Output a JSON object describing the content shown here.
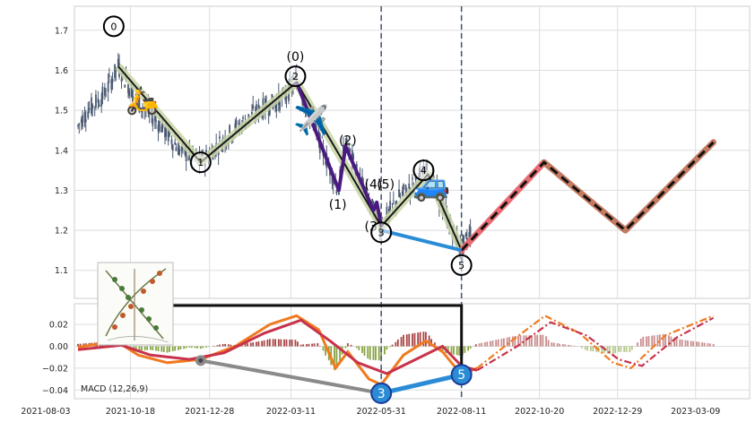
{
  "chart_data": [
    {
      "type": "candlestick",
      "ylim": [
        1.03,
        1.76
      ],
      "yticks": [
        "1.1",
        "1.2",
        "1.3",
        "1.4",
        "1.5",
        "1.6",
        "1.7"
      ],
      "x_range": [
        "2021-08-03",
        "2023-04-08"
      ],
      "grid": true,
      "price_path": [
        {
          "d": "2021-09-01",
          "v": 1.46
        },
        {
          "d": "2021-09-10",
          "v": 1.5
        },
        {
          "d": "2021-09-25",
          "v": 1.54
        },
        {
          "d": "2021-10-07",
          "v": 1.61
        },
        {
          "d": "2021-10-25",
          "v": 1.52
        },
        {
          "d": "2021-11-12",
          "v": 1.47
        },
        {
          "d": "2021-12-02",
          "v": 1.4
        },
        {
          "d": "2021-12-20",
          "v": 1.37
        },
        {
          "d": "2022-01-15",
          "v": 1.44
        },
        {
          "d": "2022-02-10",
          "v": 1.5
        },
        {
          "d": "2022-03-05",
          "v": 1.53
        },
        {
          "d": "2022-03-16",
          "v": 1.58
        },
        {
          "d": "2022-04-02",
          "v": 1.45
        },
        {
          "d": "2022-04-23",
          "v": 1.3
        },
        {
          "d": "2022-04-29",
          "v": 1.42
        },
        {
          "d": "2022-05-12",
          "v": 1.33
        },
        {
          "d": "2022-05-24",
          "v": 1.25
        },
        {
          "d": "2022-05-31",
          "v": 1.21
        },
        {
          "d": "2022-06-15",
          "v": 1.28
        },
        {
          "d": "2022-07-05",
          "v": 1.33
        },
        {
          "d": "2022-07-12",
          "v": 1.35
        },
        {
          "d": "2022-07-25",
          "v": 1.26
        },
        {
          "d": "2022-08-11",
          "v": 1.15
        },
        {
          "d": "2022-08-20",
          "v": 1.2
        }
      ],
      "zigzag_main": [
        {
          "d": "2021-10-07",
          "v": 1.61
        },
        {
          "d": "2021-12-20",
          "v": 1.37
        },
        {
          "d": "2022-03-16",
          "v": 1.57
        },
        {
          "d": "2022-05-31",
          "v": 1.21
        },
        {
          "d": "2022-07-12",
          "v": 1.34
        },
        {
          "d": "2022-08-11",
          "v": 1.15
        }
      ],
      "zigzag_sub": [
        {
          "d": "2022-03-16",
          "v": 1.57
        },
        {
          "d": "2022-04-23",
          "v": 1.3
        },
        {
          "d": "2022-04-29",
          "v": 1.41
        },
        {
          "d": "2022-05-24",
          "v": 1.25
        },
        {
          "d": "2022-05-27",
          "v": 1.27
        },
        {
          "d": "2022-05-31",
          "v": 1.21
        }
      ],
      "projection_up": [
        {
          "d": "2022-08-11",
          "v": 1.15
        },
        {
          "d": "2022-10-24",
          "v": 1.37
        }
      ],
      "projection_down": [
        {
          "d": "2022-10-24",
          "v": 1.37
        },
        {
          "d": "2023-01-05",
          "v": 1.2
        }
      ],
      "projection_up2": [
        {
          "d": "2023-01-05",
          "v": 1.2
        },
        {
          "d": "2023-03-25",
          "v": 1.42
        }
      ],
      "divergence_line": [
        {
          "d": "2022-05-31",
          "v": 1.2
        },
        {
          "d": "2022-08-11",
          "v": 1.15
        }
      ],
      "wave_labels": [
        {
          "text": "0",
          "d": "2021-10-03",
          "v": 1.71,
          "circled": true
        },
        {
          "text": "1",
          "d": "2021-12-20",
          "v": 1.37,
          "circled": true
        },
        {
          "text": "2",
          "d": "2022-03-15",
          "v": 1.585,
          "circled": true
        },
        {
          "text": "(0)",
          "d": "2022-03-15",
          "v": 1.635,
          "circled": false
        },
        {
          "text": "(1)",
          "d": "2022-04-22",
          "v": 1.265,
          "circled": false
        },
        {
          "text": "(2)",
          "d": "2022-05-01",
          "v": 1.425,
          "circled": false
        },
        {
          "text": "(4)",
          "d": "2022-05-24",
          "v": 1.315,
          "circled": false
        },
        {
          "text": "(5)",
          "d": "2022-06-04",
          "v": 1.315,
          "circled": false
        },
        {
          "text": "(3)",
          "d": "2022-05-24",
          "v": 1.21,
          "circled": false
        },
        {
          "text": "3",
          "d": "2022-05-31",
          "v": 1.195,
          "circled": true
        },
        {
          "text": "4",
          "d": "2022-07-08",
          "v": 1.35,
          "circled": true
        },
        {
          "text": "5",
          "d": "2022-08-11",
          "v": 1.113,
          "circled": true
        }
      ],
      "vlines": [
        "2022-05-31",
        "2022-08-11"
      ]
    },
    {
      "type": "macd",
      "label": "MACD (12,26,9)",
      "ylim": [
        -0.048,
        0.039
      ],
      "yticks": [
        "0.02",
        "0.00",
        "−0.02",
        "−0.04"
      ],
      "yvals": [
        0.02,
        0.0,
        -0.02,
        -0.04
      ],
      "xticks": [
        "2021-08-03",
        "2021-10-18",
        "2021-12-28",
        "2022-03-11",
        "2022-05-31",
        "2022-08-11",
        "2022-10-20",
        "2022-12-29",
        "2023-03-09"
      ],
      "macd": [
        {
          "d": "2021-09-01",
          "v": -0.001
        },
        {
          "d": "2021-10-05",
          "v": 0.005
        },
        {
          "d": "2021-10-25",
          "v": -0.008
        },
        {
          "d": "2021-11-20",
          "v": -0.015
        },
        {
          "d": "2021-12-20",
          "v": -0.012
        },
        {
          "d": "2022-01-20",
          "v": 0.0
        },
        {
          "d": "2022-02-20",
          "v": 0.02
        },
        {
          "d": "2022-03-16",
          "v": 0.028
        },
        {
          "d": "2022-04-05",
          "v": 0.015
        },
        {
          "d": "2022-04-20",
          "v": -0.02
        },
        {
          "d": "2022-05-01",
          "v": -0.005
        },
        {
          "d": "2022-05-20",
          "v": -0.03
        },
        {
          "d": "2022-05-31",
          "v": -0.035
        },
        {
          "d": "2022-06-20",
          "v": -0.008
        },
        {
          "d": "2022-07-10",
          "v": 0.005
        },
        {
          "d": "2022-07-25",
          "v": -0.005
        },
        {
          "d": "2022-08-11",
          "v": -0.026
        },
        {
          "d": "2022-08-25",
          "v": -0.02
        }
      ],
      "signal": [
        {
          "d": "2021-09-01",
          "v": -0.003
        },
        {
          "d": "2021-10-10",
          "v": 0.001
        },
        {
          "d": "2021-11-05",
          "v": -0.008
        },
        {
          "d": "2021-12-10",
          "v": -0.012
        },
        {
          "d": "2022-01-10",
          "v": -0.006
        },
        {
          "d": "2022-02-15",
          "v": 0.012
        },
        {
          "d": "2022-03-20",
          "v": 0.024
        },
        {
          "d": "2022-04-15",
          "v": 0.005
        },
        {
          "d": "2022-05-10",
          "v": -0.015
        },
        {
          "d": "2022-06-05",
          "v": -0.025
        },
        {
          "d": "2022-07-01",
          "v": -0.012
        },
        {
          "d": "2022-07-25",
          "v": 0.0
        },
        {
          "d": "2022-08-11",
          "v": -0.018
        },
        {
          "d": "2022-08-25",
          "v": -0.022
        }
      ],
      "macd_proj": [
        {
          "d": "2022-08-25",
          "v": -0.02
        },
        {
          "d": "2022-09-25",
          "v": 0.005
        },
        {
          "d": "2022-10-25",
          "v": 0.028
        },
        {
          "d": "2022-11-25",
          "v": 0.012
        },
        {
          "d": "2022-12-25",
          "v": -0.015
        },
        {
          "d": "2023-01-10",
          "v": -0.02
        },
        {
          "d": "2023-02-10",
          "v": 0.01
        },
        {
          "d": "2023-03-25",
          "v": 0.028
        }
      ],
      "signal_proj": [
        {
          "d": "2022-08-25",
          "v": -0.022
        },
        {
          "d": "2022-09-30",
          "v": 0.0
        },
        {
          "d": "2022-10-30",
          "v": 0.022
        },
        {
          "d": "2022-12-01",
          "v": 0.01
        },
        {
          "d": "2022-12-30",
          "v": -0.012
        },
        {
          "d": "2023-01-20",
          "v": -0.018
        },
        {
          "d": "2023-02-20",
          "v": 0.008
        },
        {
          "d": "2023-03-25",
          "v": 0.026
        }
      ],
      "points": [
        {
          "d": "2021-12-20",
          "v": -0.013,
          "label": "",
          "color": "#444444"
        },
        {
          "d": "2022-05-31",
          "v": -0.043,
          "label": "3",
          "color": "#2b8cd6"
        },
        {
          "d": "2022-08-11",
          "v": -0.026,
          "label": "5",
          "color": "#2b8cd6"
        }
      ]
    }
  ],
  "colors": {
    "candle": "#4a5a72",
    "zigzag": "#1a1a1a",
    "zigzag_glow": "#c9d6a8",
    "subwave": "#4b1a80",
    "projection_up": "#e86a72",
    "projection_down": "#c47a60",
    "divergence": "#2b8cd6",
    "macd": "#f07a20",
    "signal": "#c8324a",
    "hist_pos": "#a03030",
    "hist_neg": "#7a9a30",
    "grid": "#dddddd"
  },
  "icons": [
    "scooter-icon",
    "airplane-icon",
    "car-icon",
    "plant-illustration"
  ]
}
